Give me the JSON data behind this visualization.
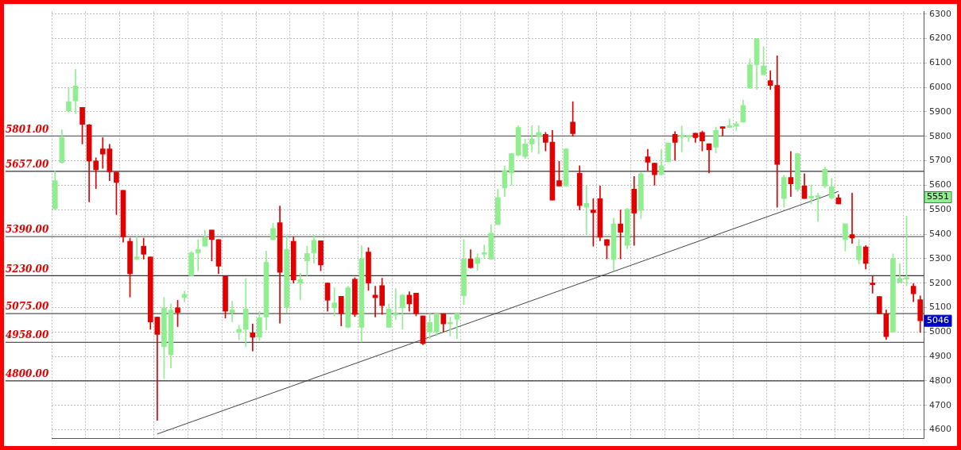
{
  "chart_data": {
    "type": "candlestick",
    "categories": [
      null,
      null,
      null,
      null,
      null,
      null,
      null,
      null,
      null,
      null,
      null,
      null,
      null,
      null,
      null,
      null,
      null,
      null,
      null,
      null,
      null,
      null,
      null,
      null,
      null,
      null,
      null,
      null,
      null,
      null,
      null,
      null,
      null,
      null,
      null,
      null,
      null,
      null,
      null,
      null,
      null,
      null,
      null,
      null,
      null,
      null,
      null,
      null,
      null,
      null,
      null,
      null,
      null,
      null,
      null,
      null,
      null,
      null,
      null,
      null,
      null,
      null,
      null,
      null,
      null,
      null,
      null,
      null,
      null,
      null,
      null,
      null,
      null,
      null,
      null,
      null,
      null,
      null,
      null,
      null,
      null,
      null,
      null,
      null,
      null,
      null,
      null,
      null,
      null,
      null,
      null,
      null,
      null,
      null,
      null,
      null,
      null,
      null,
      null,
      null,
      null,
      null,
      null,
      null,
      null,
      null,
      null,
      null,
      null,
      null,
      null,
      null,
      null,
      null,
      null,
      null,
      null,
      null,
      null,
      null,
      null,
      null,
      null,
      null,
      null,
      null,
      null,
      null
    ],
    "ohlc": [
      [
        5504,
        5658,
        5499,
        5619
      ],
      [
        5693,
        5827,
        5690,
        5795
      ],
      [
        5904,
        5997,
        5899,
        5942
      ],
      [
        5945,
        6074,
        5893,
        6006
      ],
      [
        5918,
        5918,
        5769,
        5849
      ],
      [
        5847,
        5849,
        5532,
        5699
      ],
      [
        5699,
        5712,
        5586,
        5663
      ],
      [
        5749,
        5795,
        5669,
        5727
      ],
      [
        5749,
        5767,
        5619,
        5655
      ],
      [
        5654,
        5654,
        5480,
        5611
      ],
      [
        5579,
        5579,
        5367,
        5389
      ],
      [
        5371,
        5384,
        5143,
        5238
      ],
      [
        5298,
        5389,
        5296,
        5307
      ],
      [
        5351,
        5384,
        5298,
        5318
      ],
      [
        5307,
        5307,
        5011,
        5041
      ],
      [
        5061,
        5061,
        4639,
        4990
      ],
      [
        4940,
        5141,
        4809,
        5099
      ],
      [
        4907,
        5115,
        4853,
        5090
      ],
      [
        5099,
        5130,
        5022,
        5080
      ],
      [
        5141,
        5167,
        5123,
        5154
      ],
      [
        5230,
        5329,
        5230,
        5324
      ],
      [
        5324,
        5378,
        5250,
        5338
      ],
      [
        5351,
        5417,
        5351,
        5387
      ],
      [
        5417,
        5417,
        5291,
        5378
      ],
      [
        5378,
        5378,
        5239,
        5269
      ],
      [
        5227,
        5227,
        5057,
        5085
      ],
      [
        5080,
        5126,
        5042,
        5091
      ],
      [
        4998,
        5028,
        4968,
        5011
      ],
      [
        5011,
        5220,
        4940,
        5094
      ],
      [
        4997,
        5033,
        4922,
        4979
      ],
      [
        4979,
        5085,
        4965,
        5058
      ],
      [
        5061,
        5331,
        5008,
        5285
      ],
      [
        5378,
        5444,
        5378,
        5424
      ],
      [
        5447,
        5515,
        5036,
        5244
      ],
      [
        5102,
        5395,
        5080,
        5338
      ],
      [
        5371,
        5389,
        5200,
        5213
      ],
      [
        5200,
        5241,
        5132,
        5214
      ],
      [
        5291,
        5351,
        5230,
        5321
      ],
      [
        5324,
        5397,
        5280,
        5375
      ],
      [
        5373,
        5373,
        5250,
        5274
      ],
      [
        5200,
        5200,
        5085,
        5130
      ],
      [
        5099,
        5181,
        5066,
        5119
      ],
      [
        5146,
        5146,
        5025,
        5075
      ],
      [
        5019,
        5187,
        5017,
        5181
      ],
      [
        5216,
        5222,
        5063,
        5072
      ],
      [
        5019,
        5353,
        4959,
        5299
      ],
      [
        5327,
        5345,
        5170,
        5200
      ],
      [
        5151,
        5187,
        5061,
        5140
      ],
      [
        5190,
        5220,
        5072,
        5108
      ],
      [
        5019,
        5115,
        5019,
        5094
      ],
      [
        5069,
        5178,
        5050,
        5075
      ],
      [
        5099,
        5154,
        5011,
        5151
      ],
      [
        5151,
        5165,
        5085,
        5115
      ],
      [
        5159,
        5159,
        5066,
        5075
      ],
      [
        5066,
        5066,
        4948,
        4953
      ],
      [
        5000,
        5075,
        4973,
        5039
      ],
      [
        5000,
        5075,
        4984,
        5075
      ],
      [
        5075,
        5075,
        5000,
        5033
      ],
      [
        5033,
        5061,
        4984,
        5039
      ],
      [
        5052,
        5075,
        4973,
        5075
      ],
      [
        5148,
        5378,
        5112,
        5298
      ],
      [
        5298,
        5337,
        5261,
        5263
      ],
      [
        5280,
        5320,
        5252,
        5304
      ],
      [
        5318,
        5356,
        5302,
        5324
      ],
      [
        5298,
        5439,
        5298,
        5404
      ],
      [
        5439,
        5584,
        5439,
        5550
      ],
      [
        5589,
        5680,
        5554,
        5660
      ],
      [
        5650,
        5729,
        5600,
        5729
      ],
      [
        5723,
        5844,
        5720,
        5836
      ],
      [
        5718,
        5789,
        5709,
        5769
      ],
      [
        5769,
        5844,
        5736,
        5789
      ],
      [
        5798,
        5844,
        5729,
        5816
      ],
      [
        5808,
        5816,
        5740,
        5775
      ],
      [
        5776,
        5824,
        5539,
        5539
      ],
      [
        5619,
        5698,
        5597,
        5597
      ],
      [
        5597,
        5749,
        5597,
        5749
      ],
      [
        5858,
        5942,
        5800,
        5811
      ],
      [
        5649,
        5680,
        5499,
        5517
      ],
      [
        5510,
        5597,
        5400,
        5526
      ],
      [
        5499,
        5545,
        5351,
        5488
      ],
      [
        5545,
        5597,
        5373,
        5387
      ],
      [
        5378,
        5378,
        5299,
        5354
      ],
      [
        5296,
        5466,
        5252,
        5442
      ],
      [
        5442,
        5499,
        5299,
        5408
      ],
      [
        5354,
        5506,
        5340,
        5502
      ],
      [
        5584,
        5636,
        5354,
        5486
      ],
      [
        5497,
        5652,
        5464,
        5647
      ],
      [
        5716,
        5747,
        5660,
        5694
      ],
      [
        5690,
        5690,
        5600,
        5643
      ],
      [
        5643,
        5747,
        5643,
        5680
      ],
      [
        5696,
        5773,
        5696,
        5773
      ],
      [
        5808,
        5819,
        5702,
        5775
      ],
      [
        5798,
        5842,
        5736,
        5802
      ],
      [
        5797,
        5802,
        5778,
        5800
      ],
      [
        5813,
        5813,
        5775,
        5795
      ],
      [
        5816,
        5822,
        5740,
        5781
      ],
      [
        5770,
        5770,
        5650,
        5745
      ],
      [
        5756,
        5838,
        5732,
        5824
      ],
      [
        5838,
        5838,
        5802,
        5833
      ],
      [
        5836,
        5871,
        5836,
        5844
      ],
      [
        5841,
        5860,
        5824,
        5851
      ],
      [
        5858,
        5948,
        5858,
        5926
      ],
      [
        5997,
        6117,
        5997,
        6093
      ],
      [
        6093,
        6199,
        5992,
        6199
      ],
      [
        6052,
        6167,
        6052,
        6088
      ],
      [
        6028,
        6068,
        5992,
        6008
      ],
      [
        6008,
        6129,
        5510,
        5685
      ],
      [
        5546,
        5641,
        5510,
        5632
      ],
      [
        5632,
        5738,
        5554,
        5606
      ],
      [
        5584,
        5729,
        5575,
        5729
      ],
      [
        5597,
        5647,
        5546,
        5546
      ],
      [
        5548,
        5600,
        5524,
        5551
      ],
      [
        5551,
        5568,
        5452,
        5554
      ],
      [
        5597,
        5676,
        5589,
        5665
      ],
      [
        5548,
        5628,
        5543,
        5594
      ],
      [
        5548,
        5562,
        5524,
        5524
      ],
      [
        5378,
        5442,
        5331,
        5442
      ],
      [
        5398,
        5568,
        5362,
        5384
      ],
      [
        5296,
        5378,
        5278,
        5351
      ],
      [
        5348,
        5353,
        5258,
        5280
      ],
      [
        5200,
        5227,
        5159,
        5194
      ],
      [
        5145,
        5145,
        5075,
        5075
      ],
      [
        5075,
        5090,
        4970,
        4981
      ],
      [
        5000,
        5320,
        5000,
        5299
      ],
      [
        5203,
        5280,
        5203,
        5220
      ],
      [
        5216,
        5474,
        5189,
        5220
      ],
      [
        5187,
        5198,
        5124,
        5156
      ],
      [
        5132,
        5148,
        4998,
        5046
      ]
    ],
    "colors": [
      "#90ee90",
      "#90ee90",
      "#90ee90",
      "#90ee90",
      "#e00000",
      "#e00000",
      "#e00000",
      "#e00000",
      "#e00000",
      "#e00000",
      "#e00000",
      "#e00000",
      "#90ee90",
      "#e00000",
      "#e00000",
      "#e00000",
      "#90ee90",
      "#90ee90",
      "#e00000",
      "#90ee90",
      "#90ee90",
      "#90ee90",
      "#90ee90",
      "#e00000",
      "#e00000",
      "#e00000",
      "#90ee90",
      "#90ee90",
      "#90ee90",
      "#e00000",
      "#90ee90",
      "#90ee90",
      "#90ee90",
      "#e00000",
      "#90ee90",
      "#e00000",
      "#90ee90",
      "#90ee90",
      "#90ee90",
      "#e00000",
      "#e00000",
      "#90ee90",
      "#e00000",
      "#90ee90",
      "#e00000",
      "#90ee90",
      "#e00000",
      "#e00000",
      "#e00000",
      "#90ee90",
      "#90ee90",
      "#90ee90",
      "#e00000",
      "#e00000",
      "#e00000",
      "#90ee90",
      "#90ee90",
      "#e00000",
      "#90ee90",
      "#90ee90",
      "#90ee90",
      "#e00000",
      "#90ee90",
      "#90ee90",
      "#90ee90",
      "#90ee90",
      "#90ee90",
      "#90ee90",
      "#90ee90",
      "#90ee90",
      "#90ee90",
      "#90ee90",
      "#e00000",
      "#e00000",
      "#e00000",
      "#90ee90",
      "#e00000",
      "#e00000",
      "#90ee90",
      "#e00000",
      "#e00000",
      "#e00000",
      "#90ee90",
      "#e00000",
      "#90ee90",
      "#e00000",
      "#90ee90",
      "#e00000",
      "#e00000",
      "#90ee90",
      "#90ee90",
      "#e00000",
      "#90ee90",
      "#90ee90",
      "#e00000",
      "#e00000",
      "#e00000",
      "#90ee90",
      "#e00000",
      "#90ee90",
      "#90ee90",
      "#90ee90",
      "#90ee90",
      "#90ee90",
      "#90ee90",
      "#e00000",
      "#e00000",
      "#90ee90",
      "#e00000",
      "#90ee90",
      "#e00000",
      "#90ee90",
      "#90ee90",
      "#90ee90",
      "#90ee90",
      "#e00000",
      "#90ee90",
      "#e00000",
      "#90ee90",
      "#e00000",
      "#e00000",
      "#e00000",
      "#e00000",
      "#90ee90",
      "#90ee90",
      "#90ee90",
      "#e00000",
      "#e00000"
    ],
    "series": [
      {
        "type": "line",
        "color": "#444444",
        "values": [
          null,
          null,
          null,
          null,
          null,
          null,
          null,
          null,
          null,
          null,
          null,
          null,
          null,
          null,
          null,
          4583,
          null,
          null,
          null,
          null,
          null,
          null,
          null,
          null,
          null,
          null,
          null,
          null,
          null,
          null,
          null,
          null,
          null,
          null,
          null,
          null,
          null,
          null,
          null,
          null,
          null,
          null,
          null,
          null,
          null,
          null,
          null,
          null,
          null,
          null,
          null,
          null,
          null,
          null,
          null,
          null,
          null,
          null,
          null,
          null,
          null,
          null,
          null,
          null,
          null,
          null,
          null,
          null,
          null,
          null,
          null,
          null,
          null,
          null,
          null,
          null,
          null,
          null,
          null,
          null,
          null,
          null,
          null,
          null,
          null,
          null,
          null,
          null,
          null,
          null,
          null,
          null,
          null,
          null,
          null,
          null,
          null,
          null,
          null,
          null,
          null,
          null,
          null,
          null,
          null,
          null,
          null,
          null,
          null,
          null,
          null,
          null,
          null,
          null,
          null,
          5575,
          null,
          null,
          null,
          null,
          null,
          null,
          null,
          null,
          null,
          null,
          null,
          null
        ]
      }
    ],
    "ylim": [
      4565,
      6310
    ],
    "yticks": [
      4600,
      4700,
      4800,
      4900,
      5000,
      5100,
      5200,
      5300,
      5400,
      5500,
      5600,
      5700,
      5800,
      5900,
      6000,
      6100,
      6200,
      6300
    ],
    "grid": true,
    "tick_labels": "y",
    "ref_lines": [
      {
        "axis": "y",
        "value": 5801,
        "label": "5801.00",
        "color": "#666666"
      },
      {
        "axis": "y",
        "value": 5657,
        "label": "5657.00",
        "color": "#333333"
      },
      {
        "axis": "y",
        "value": 5390,
        "label": "5390.00",
        "color": "#666666"
      },
      {
        "axis": "y",
        "value": 5230,
        "label": "5230.00",
        "color": "#333333"
      },
      {
        "axis": "y",
        "value": 5075,
        "label": "5075.00",
        "color": "#555555"
      },
      {
        "axis": "y",
        "value": 4958,
        "label": "4958.00",
        "color": "#555555"
      },
      {
        "axis": "y",
        "value": 4800,
        "label": "4800.00",
        "color": "#333333"
      }
    ],
    "annotations": [
      {
        "text": "5551",
        "y": 5551
      },
      {
        "text": "5046",
        "y": 5046
      }
    ]
  }
}
